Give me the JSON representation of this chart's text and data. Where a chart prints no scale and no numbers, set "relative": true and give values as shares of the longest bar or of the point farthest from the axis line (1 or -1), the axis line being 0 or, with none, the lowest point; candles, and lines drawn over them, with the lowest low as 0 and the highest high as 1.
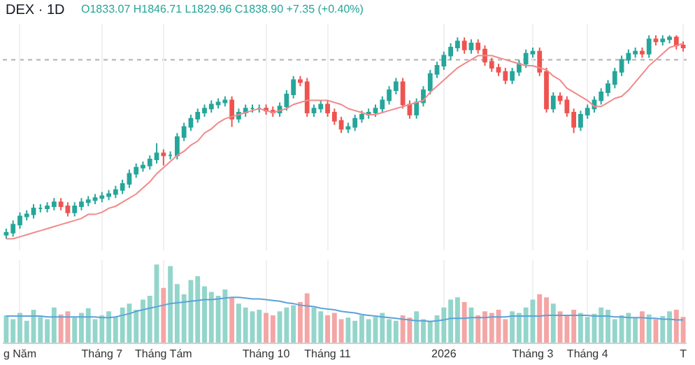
{
  "chart_data": [
    {
      "type": "candlestick",
      "title": "DEX · 1D",
      "annotations": [
        "O1833.07 H1846.71 L1829.96 C1838.90 +7.35 (+0.40%)"
      ],
      "relative": true,
      "tick_labels": false,
      "grid": "x",
      "categories": [
        null,
        null,
        "g Năm",
        null,
        null,
        null,
        null,
        null,
        null,
        null,
        null,
        null,
        null,
        null,
        "Tháng 7",
        null,
        null,
        null,
        null,
        null,
        null,
        null,
        null,
        "Tháng Tám",
        null,
        null,
        null,
        null,
        null,
        null,
        null,
        null,
        null,
        null,
        null,
        null,
        null,
        null,
        "Tháng 10",
        null,
        null,
        null,
        null,
        null,
        null,
        null,
        null,
        "Tháng 11",
        null,
        null,
        null,
        null,
        null,
        null,
        null,
        null,
        null,
        null,
        null,
        null,
        null,
        null,
        null,
        null,
        "2026",
        null,
        null,
        null,
        null,
        null,
        null,
        null,
        null,
        null,
        null,
        null,
        null,
        "Tháng 3",
        null,
        null,
        null,
        null,
        null,
        null,
        null,
        "Tháng 4",
        null,
        null,
        null,
        null,
        null,
        null,
        null,
        null,
        null,
        null,
        null,
        null,
        null,
        "T"
      ],
      "series": [
        {
          "type": "candlestick",
          "ohlc": [
            [
              0.02,
              0.05,
              0.0,
              0.03
            ],
            [
              0.03,
              0.09,
              0.01,
              0.07
            ],
            [
              0.07,
              0.13,
              0.05,
              0.11
            ],
            [
              0.11,
              0.14,
              0.09,
              0.12
            ],
            [
              0.12,
              0.17,
              0.1,
              0.15
            ],
            [
              0.15,
              0.17,
              0.13,
              0.15
            ],
            [
              0.15,
              0.18,
              0.13,
              0.16
            ],
            [
              0.16,
              0.2,
              0.14,
              0.18
            ],
            [
              0.18,
              0.2,
              0.14,
              0.16
            ],
            [
              0.16,
              0.18,
              0.11,
              0.13
            ],
            [
              0.13,
              0.18,
              0.11,
              0.16
            ],
            [
              0.16,
              0.2,
              0.14,
              0.18
            ],
            [
              0.18,
              0.21,
              0.16,
              0.19
            ],
            [
              0.19,
              0.22,
              0.17,
              0.2
            ],
            [
              0.2,
              0.23,
              0.18,
              0.21
            ],
            [
              0.21,
              0.24,
              0.19,
              0.22
            ],
            [
              0.22,
              0.26,
              0.2,
              0.24
            ],
            [
              0.24,
              0.29,
              0.22,
              0.27
            ],
            [
              0.27,
              0.34,
              0.25,
              0.32
            ],
            [
              0.32,
              0.37,
              0.3,
              0.35
            ],
            [
              0.35,
              0.38,
              0.33,
              0.36
            ],
            [
              0.36,
              0.41,
              0.34,
              0.39
            ],
            [
              0.39,
              0.47,
              0.37,
              0.42
            ],
            [
              0.42,
              0.44,
              0.36,
              0.41
            ],
            [
              0.41,
              0.43,
              0.39,
              0.41
            ],
            [
              0.41,
              0.52,
              0.39,
              0.5
            ],
            [
              0.5,
              0.57,
              0.48,
              0.55
            ],
            [
              0.55,
              0.61,
              0.53,
              0.59
            ],
            [
              0.59,
              0.64,
              0.57,
              0.62
            ],
            [
              0.62,
              0.66,
              0.6,
              0.64
            ],
            [
              0.64,
              0.68,
              0.62,
              0.66
            ],
            [
              0.66,
              0.69,
              0.64,
              0.67
            ],
            [
              0.67,
              0.7,
              0.65,
              0.68
            ],
            [
              0.68,
              0.7,
              0.55,
              0.59
            ],
            [
              0.59,
              0.64,
              0.57,
              0.62
            ],
            [
              0.62,
              0.66,
              0.6,
              0.64
            ],
            [
              0.64,
              0.66,
              0.62,
              0.64
            ],
            [
              0.64,
              0.66,
              0.62,
              0.64
            ],
            [
              0.64,
              0.66,
              0.61,
              0.63
            ],
            [
              0.63,
              0.65,
              0.6,
              0.62
            ],
            [
              0.62,
              0.67,
              0.6,
              0.65
            ],
            [
              0.65,
              0.73,
              0.63,
              0.71
            ],
            [
              0.71,
              0.8,
              0.69,
              0.78
            ],
            [
              0.78,
              0.8,
              0.75,
              0.77
            ],
            [
              0.77,
              0.79,
              0.6,
              0.62
            ],
            [
              0.62,
              0.66,
              0.6,
              0.64
            ],
            [
              0.64,
              0.68,
              0.62,
              0.66
            ],
            [
              0.66,
              0.68,
              0.6,
              0.62
            ],
            [
              0.62,
              0.64,
              0.56,
              0.58
            ],
            [
              0.58,
              0.6,
              0.52,
              0.54
            ],
            [
              0.54,
              0.57,
              0.52,
              0.55
            ],
            [
              0.55,
              0.61,
              0.53,
              0.59
            ],
            [
              0.59,
              0.63,
              0.57,
              0.61
            ],
            [
              0.61,
              0.64,
              0.59,
              0.62
            ],
            [
              0.62,
              0.66,
              0.6,
              0.64
            ],
            [
              0.64,
              0.7,
              0.62,
              0.68
            ],
            [
              0.68,
              0.75,
              0.66,
              0.73
            ],
            [
              0.73,
              0.79,
              0.71,
              0.77
            ],
            [
              0.77,
              0.79,
              0.64,
              0.66
            ],
            [
              0.66,
              0.68,
              0.59,
              0.61
            ],
            [
              0.61,
              0.69,
              0.59,
              0.67
            ],
            [
              0.67,
              0.75,
              0.65,
              0.73
            ],
            [
              0.73,
              0.83,
              0.71,
              0.81
            ],
            [
              0.81,
              0.87,
              0.79,
              0.85
            ],
            [
              0.85,
              0.92,
              0.83,
              0.9
            ],
            [
              0.9,
              0.96,
              0.88,
              0.94
            ],
            [
              0.94,
              0.99,
              0.92,
              0.97
            ],
            [
              0.97,
              0.99,
              0.91,
              0.93
            ],
            [
              0.93,
              0.98,
              0.91,
              0.96
            ],
            [
              0.96,
              0.98,
              0.91,
              0.93
            ],
            [
              0.93,
              0.95,
              0.85,
              0.87
            ],
            [
              0.87,
              0.89,
              0.82,
              0.84
            ],
            [
              0.84,
              0.86,
              0.8,
              0.82
            ],
            [
              0.82,
              0.84,
              0.76,
              0.78
            ],
            [
              0.78,
              0.84,
              0.76,
              0.82
            ],
            [
              0.82,
              0.88,
              0.8,
              0.86
            ],
            [
              0.86,
              0.93,
              0.84,
              0.91
            ],
            [
              0.91,
              0.94,
              0.89,
              0.92
            ],
            [
              0.92,
              0.94,
              0.8,
              0.82
            ],
            [
              0.82,
              0.84,
              0.62,
              0.64
            ],
            [
              0.64,
              0.72,
              0.62,
              0.7
            ],
            [
              0.7,
              0.72,
              0.66,
              0.68
            ],
            [
              0.68,
              0.7,
              0.6,
              0.62
            ],
            [
              0.62,
              0.64,
              0.52,
              0.55
            ],
            [
              0.55,
              0.63,
              0.53,
              0.61
            ],
            [
              0.61,
              0.66,
              0.59,
              0.64
            ],
            [
              0.64,
              0.7,
              0.62,
              0.68
            ],
            [
              0.68,
              0.74,
              0.66,
              0.72
            ],
            [
              0.72,
              0.78,
              0.7,
              0.76
            ],
            [
              0.76,
              0.84,
              0.74,
              0.82
            ],
            [
              0.82,
              0.9,
              0.8,
              0.88
            ],
            [
              0.88,
              0.93,
              0.86,
              0.91
            ],
            [
              0.91,
              0.94,
              0.89,
              0.92
            ],
            [
              0.92,
              0.94,
              0.89,
              0.91
            ],
            [
              0.91,
              1.0,
              0.89,
              0.98
            ],
            [
              0.98,
              1.0,
              0.95,
              0.97
            ],
            [
              0.97,
              1.0,
              0.95,
              0.98
            ],
            [
              0.98,
              1.0,
              0.96,
              0.99
            ],
            [
              0.99,
              1.0,
              0.93,
              0.95
            ],
            [
              0.95,
              0.97,
              0.92,
              0.94
            ]
          ],
          "colors": [
            "#26a69a",
            "#26a69a",
            "#26a69a",
            "#26a69a",
            "#26a69a",
            "#26a69a",
            "#26a69a",
            "#26a69a",
            "#ef5350",
            "#ef5350",
            "#26a69a",
            "#26a69a",
            "#26a69a",
            "#26a69a",
            "#26a69a",
            "#26a69a",
            "#26a69a",
            "#26a69a",
            "#26a69a",
            "#26a69a",
            "#26a69a",
            "#26a69a",
            "#26a69a",
            "#ef5350",
            "#26a69a",
            "#26a69a",
            "#26a69a",
            "#26a69a",
            "#26a69a",
            "#26a69a",
            "#26a69a",
            "#26a69a",
            "#26a69a",
            "#ef5350",
            "#26a69a",
            "#26a69a",
            "#26a69a",
            "#26a69a",
            "#ef5350",
            "#ef5350",
            "#26a69a",
            "#26a69a",
            "#26a69a",
            "#ef5350",
            "#ef5350",
            "#26a69a",
            "#26a69a",
            "#ef5350",
            "#ef5350",
            "#ef5350",
            "#26a69a",
            "#26a69a",
            "#26a69a",
            "#26a69a",
            "#26a69a",
            "#26a69a",
            "#26a69a",
            "#26a69a",
            "#ef5350",
            "#ef5350",
            "#26a69a",
            "#26a69a",
            "#26a69a",
            "#26a69a",
            "#26a69a",
            "#26a69a",
            "#26a69a",
            "#ef5350",
            "#26a69a",
            "#ef5350",
            "#ef5350",
            "#ef5350",
            "#ef5350",
            "#ef5350",
            "#26a69a",
            "#26a69a",
            "#26a69a",
            "#26a69a",
            "#ef5350",
            "#ef5350",
            "#26a69a",
            "#ef5350",
            "#ef5350",
            "#ef5350",
            "#26a69a",
            "#26a69a",
            "#26a69a",
            "#26a69a",
            "#26a69a",
            "#26a69a",
            "#26a69a",
            "#26a69a",
            "#26a69a",
            "#ef5350",
            "#26a69a",
            "#ef5350",
            "#26a69a",
            "#26a69a",
            "#ef5350",
            "#ef5350"
          ]
        },
        {
          "type": "line",
          "color": "#f08a8a",
          "values": [
            0.0,
            0.0,
            0.01,
            0.02,
            0.03,
            0.04,
            0.05,
            0.06,
            0.07,
            0.08,
            0.09,
            0.1,
            0.12,
            0.12,
            0.13,
            0.15,
            0.16,
            0.18,
            0.2,
            0.22,
            0.25,
            0.28,
            0.32,
            0.35,
            0.38,
            0.41,
            0.43,
            0.46,
            0.48,
            0.52,
            0.54,
            0.57,
            0.59,
            0.6,
            0.61,
            0.62,
            0.63,
            0.64,
            0.63,
            0.62,
            0.63,
            0.64,
            0.66,
            0.67,
            0.68,
            0.68,
            0.68,
            0.68,
            0.67,
            0.66,
            0.64,
            0.63,
            0.62,
            0.61,
            0.61,
            0.62,
            0.63,
            0.64,
            0.65,
            0.66,
            0.67,
            0.68,
            0.72,
            0.75,
            0.78,
            0.81,
            0.84,
            0.86,
            0.88,
            0.9,
            0.9,
            0.9,
            0.89,
            0.88,
            0.87,
            0.86,
            0.85,
            0.85,
            0.84,
            0.83,
            0.8,
            0.78,
            0.74,
            0.72,
            0.7,
            0.68,
            0.65,
            0.65,
            0.67,
            0.69,
            0.7,
            0.73,
            0.77,
            0.81,
            0.85,
            0.88,
            0.91,
            0.94,
            0.95,
            0.96
          ]
        }
      ],
      "ref_lines": [
        {
          "axis": "y",
          "value": 0.88,
          "color": "#b0b0b0",
          "line_style": "dotted"
        }
      ]
    },
    {
      "type": "bar",
      "relative": true,
      "grid": "x",
      "categories": [
        null,
        null,
        "g Năm",
        null,
        null,
        null,
        null,
        null,
        null,
        null,
        null,
        null,
        null,
        null,
        "Tháng 7",
        null,
        null,
        null,
        null,
        null,
        null,
        null,
        null,
        "Tháng Tám",
        null,
        null,
        null,
        null,
        null,
        null,
        null,
        null,
        null,
        null,
        null,
        null,
        null,
        null,
        "Tháng 10",
        null,
        null,
        null,
        null,
        null,
        null,
        null,
        null,
        "Tháng 11",
        null,
        null,
        null,
        null,
        null,
        null,
        null,
        null,
        null,
        null,
        null,
        null,
        null,
        null,
        null,
        null,
        "2026",
        null,
        null,
        null,
        null,
        null,
        null,
        null,
        null,
        null,
        null,
        null,
        null,
        "Tháng 3",
        null,
        null,
        null,
        null,
        null,
        null,
        null,
        "Tháng 4",
        null,
        null,
        null,
        null,
        null,
        null,
        null,
        null,
        null,
        null,
        null,
        null,
        null,
        "T"
      ],
      "series": [
        {
          "values": [
            0.35,
            0.3,
            0.38,
            0.28,
            0.42,
            0.33,
            0.3,
            0.45,
            0.36,
            0.4,
            0.32,
            0.38,
            0.44,
            0.3,
            0.35,
            0.4,
            0.33,
            0.45,
            0.5,
            0.42,
            0.55,
            0.6,
            1.0,
            0.7,
            0.98,
            0.75,
            0.62,
            0.8,
            0.85,
            0.72,
            0.65,
            0.6,
            0.68,
            0.58,
            0.5,
            0.45,
            0.4,
            0.42,
            0.38,
            0.35,
            0.4,
            0.45,
            0.48,
            0.52,
            0.63,
            0.45,
            0.4,
            0.35,
            0.38,
            0.3,
            0.32,
            0.28,
            0.35,
            0.3,
            0.33,
            0.38,
            0.3,
            0.28,
            0.35,
            0.32,
            0.4,
            0.3,
            0.28,
            0.35,
            0.45,
            0.55,
            0.58,
            0.52,
            0.45,
            0.35,
            0.4,
            0.38,
            0.42,
            0.3,
            0.4,
            0.38,
            0.45,
            0.55,
            0.62,
            0.58,
            0.5,
            0.4,
            0.35,
            0.42,
            0.38,
            0.33,
            0.37,
            0.45,
            0.42,
            0.3,
            0.35,
            0.38,
            0.32,
            0.4,
            0.36,
            0.3,
            0.34,
            0.4,
            0.42,
            0.33
          ],
          "colors": [
            "#93d5cb",
            "#93d5cb",
            "#93d5cb",
            "#93d5cb",
            "#93d5cb",
            "#93d5cb",
            "#93d5cb",
            "#93d5cb",
            "#f4a5a5",
            "#f4a5a5",
            "#93d5cb",
            "#93d5cb",
            "#93d5cb",
            "#93d5cb",
            "#93d5cb",
            "#93d5cb",
            "#93d5cb",
            "#93d5cb",
            "#93d5cb",
            "#93d5cb",
            "#93d5cb",
            "#93d5cb",
            "#93d5cb",
            "#f4a5a5",
            "#93d5cb",
            "#93d5cb",
            "#93d5cb",
            "#93d5cb",
            "#93d5cb",
            "#93d5cb",
            "#93d5cb",
            "#93d5cb",
            "#93d5cb",
            "#f4a5a5",
            "#93d5cb",
            "#93d5cb",
            "#93d5cb",
            "#93d5cb",
            "#f4a5a5",
            "#f4a5a5",
            "#93d5cb",
            "#93d5cb",
            "#93d5cb",
            "#f4a5a5",
            "#f4a5a5",
            "#93d5cb",
            "#93d5cb",
            "#f4a5a5",
            "#f4a5a5",
            "#f4a5a5",
            "#93d5cb",
            "#93d5cb",
            "#93d5cb",
            "#93d5cb",
            "#93d5cb",
            "#93d5cb",
            "#93d5cb",
            "#93d5cb",
            "#f4a5a5",
            "#f4a5a5",
            "#93d5cb",
            "#93d5cb",
            "#93d5cb",
            "#93d5cb",
            "#93d5cb",
            "#93d5cb",
            "#93d5cb",
            "#f4a5a5",
            "#93d5cb",
            "#f4a5a5",
            "#f4a5a5",
            "#f4a5a5",
            "#f4a5a5",
            "#f4a5a5",
            "#93d5cb",
            "#93d5cb",
            "#93d5cb",
            "#93d5cb",
            "#f4a5a5",
            "#f4a5a5",
            "#93d5cb",
            "#f4a5a5",
            "#f4a5a5",
            "#f4a5a5",
            "#93d5cb",
            "#93d5cb",
            "#93d5cb",
            "#93d5cb",
            "#93d5cb",
            "#93d5cb",
            "#93d5cb",
            "#93d5cb",
            "#93d5cb",
            "#f4a5a5",
            "#93d5cb",
            "#f4a5a5",
            "#93d5cb",
            "#93d5cb",
            "#f4a5a5",
            "#f4a5a5"
          ]
        },
        {
          "type": "line",
          "color": "#5ba3d9",
          "values": [
            0.34,
            0.34,
            0.34,
            0.34,
            0.34,
            0.34,
            0.33,
            0.33,
            0.33,
            0.33,
            0.33,
            0.33,
            0.33,
            0.33,
            0.32,
            0.32,
            0.33,
            0.35,
            0.37,
            0.4,
            0.42,
            0.44,
            0.46,
            0.48,
            0.5,
            0.51,
            0.52,
            0.53,
            0.54,
            0.55,
            0.55,
            0.56,
            0.57,
            0.58,
            0.58,
            0.57,
            0.56,
            0.56,
            0.55,
            0.54,
            0.53,
            0.51,
            0.5,
            0.48,
            0.47,
            0.46,
            0.44,
            0.43,
            0.42,
            0.4,
            0.39,
            0.38,
            0.36,
            0.35,
            0.34,
            0.33,
            0.32,
            0.31,
            0.3,
            0.29,
            0.28,
            0.28,
            0.27,
            0.28,
            0.29,
            0.31,
            0.31,
            0.31,
            0.32,
            0.32,
            0.32,
            0.33,
            0.33,
            0.33,
            0.34,
            0.34,
            0.34,
            0.34,
            0.34,
            0.35,
            0.35,
            0.35,
            0.35,
            0.35,
            0.35,
            0.35,
            0.34,
            0.34,
            0.34,
            0.33,
            0.33,
            0.32,
            0.32,
            0.32,
            0.31,
            0.31,
            0.3,
            0.3,
            0.29,
            0.29
          ]
        }
      ]
    }
  ]
}
